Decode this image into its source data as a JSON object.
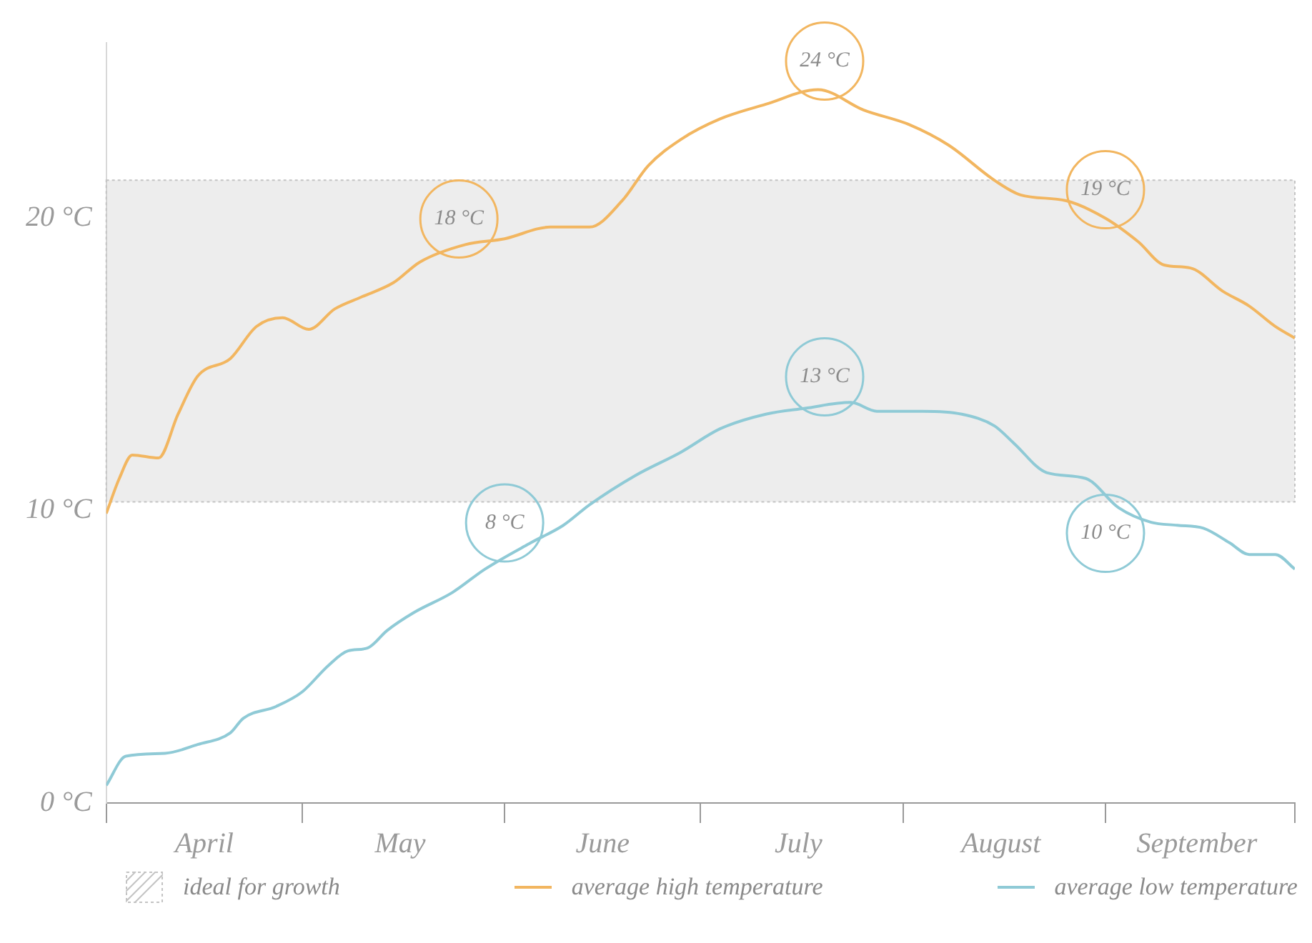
{
  "chart_data": {
    "type": "line",
    "xlim": [
      "--04-01",
      "--09-30"
    ],
    "xticks": [
      {
        "value": "--04-01",
        "label": null
      },
      {
        "value": "--04-16",
        "label": "April"
      },
      {
        "value": "--05-01",
        "label": null
      },
      {
        "value": "--05-16",
        "label": "May"
      },
      {
        "value": "--06-01",
        "label": null
      },
      {
        "value": "--06-16",
        "label": "June"
      },
      {
        "value": "--07-01",
        "label": null
      },
      {
        "value": "--07-16",
        "label": "July"
      },
      {
        "value": "--08-01",
        "label": null
      },
      {
        "value": "--08-16",
        "label": "August"
      },
      {
        "value": "--09-01",
        "label": null
      },
      {
        "value": "--09-15",
        "label": "September"
      },
      {
        "value": "--09-30",
        "label": null
      }
    ],
    "ylim": [
      0,
      26
    ],
    "yticks": [
      {
        "value": 0,
        "label": "0 °C"
      },
      {
        "value": 10,
        "label": "10 °C"
      },
      {
        "value": 20,
        "label": "20 °C"
      }
    ],
    "grid": false,
    "legend": "bottom",
    "marker": "none",
    "line_style": "solid",
    "bands": [
      {
        "axis": "y",
        "from": 10.3,
        "to": 21.3,
        "label": "ideal for growth",
        "color": "#c4c4c4"
      }
    ],
    "series": [
      {
        "name": "average high temperature",
        "color": "#f2b660",
        "x": [
          "--04-01",
          "--04-03",
          "--04-05",
          "--04-09",
          "--04-12",
          "--04-15",
          "--04-20",
          "--04-24",
          "--04-28",
          "--05-02",
          "--05-06",
          "--05-10",
          "--05-15",
          "--05-19",
          "--05-26",
          "--06-01",
          "--06-08",
          "--06-14",
          "--06-19",
          "--06-23",
          "--06-28",
          "--07-04",
          "--07-11",
          "--07-19",
          "--07-26",
          "--08-02",
          "--08-08",
          "--08-15",
          "--08-19",
          "--08-26",
          "--09-01",
          "--09-06",
          "--09-10",
          "--09-14",
          "--09-19",
          "--09-23",
          "--09-27",
          "--09-30"
        ],
        "values": [
          9.9,
          11.1,
          11.9,
          11.8,
          13.3,
          14.6,
          15.2,
          16.3,
          16.6,
          16.2,
          16.9,
          17.3,
          17.8,
          18.5,
          19.1,
          19.3,
          19.7,
          19.7,
          20.6,
          21.8,
          22.7,
          23.4,
          23.9,
          24.4,
          23.7,
          23.2,
          22.5,
          21.3,
          20.8,
          20.6,
          20.0,
          19.2,
          18.4,
          18.3,
          17.5,
          17.0,
          16.3,
          15.9
        ]
      },
      {
        "name": "average low temperature",
        "color": "#8fcad6",
        "x": [
          "--04-01",
          "--04-04",
          "--04-10",
          "--04-15",
          "--04-20",
          "--04-22",
          "--04-27",
          "--05-01",
          "--05-05",
          "--05-08",
          "--05-11",
          "--05-14",
          "--05-18",
          "--05-24",
          "--05-29",
          "--06-05",
          "--06-10",
          "--06-14",
          "--06-21",
          "--06-28",
          "--07-04",
          "--07-11",
          "--07-17",
          "--07-24",
          "--07-28",
          "--08-04",
          "--08-10",
          "--08-15",
          "--08-18",
          "--08-23",
          "--08-29",
          "--09-03",
          "--09-08",
          "--09-12",
          "--09-16",
          "--09-20",
          "--09-23",
          "--09-27",
          "--09-30"
        ],
        "values": [
          0.6,
          1.6,
          1.7,
          2.0,
          2.4,
          2.9,
          3.3,
          3.8,
          4.7,
          5.2,
          5.3,
          5.9,
          6.5,
          7.2,
          8.0,
          8.9,
          9.5,
          10.2,
          11.2,
          12.0,
          12.8,
          13.3,
          13.5,
          13.7,
          13.4,
          13.4,
          13.3,
          12.9,
          12.3,
          11.3,
          11.1,
          10.1,
          9.6,
          9.5,
          9.4,
          8.9,
          8.5,
          8.5,
          8.0
        ]
      }
    ],
    "annotations": [
      {
        "text": "18 °C",
        "x": "--05-25",
        "y": 19.0
      },
      {
        "text": "24 °C",
        "x": "--07-20",
        "y": 24.4
      },
      {
        "text": "19 °C",
        "x": "--09-01",
        "y": 20.0
      },
      {
        "text": "8 °C",
        "x": "--06-01",
        "y": 8.6
      },
      {
        "text": "13 °C",
        "x": "--07-20",
        "y": 13.6
      },
      {
        "text": "10 °C",
        "x": "--09-01",
        "y": 10.2
      }
    ]
  }
}
